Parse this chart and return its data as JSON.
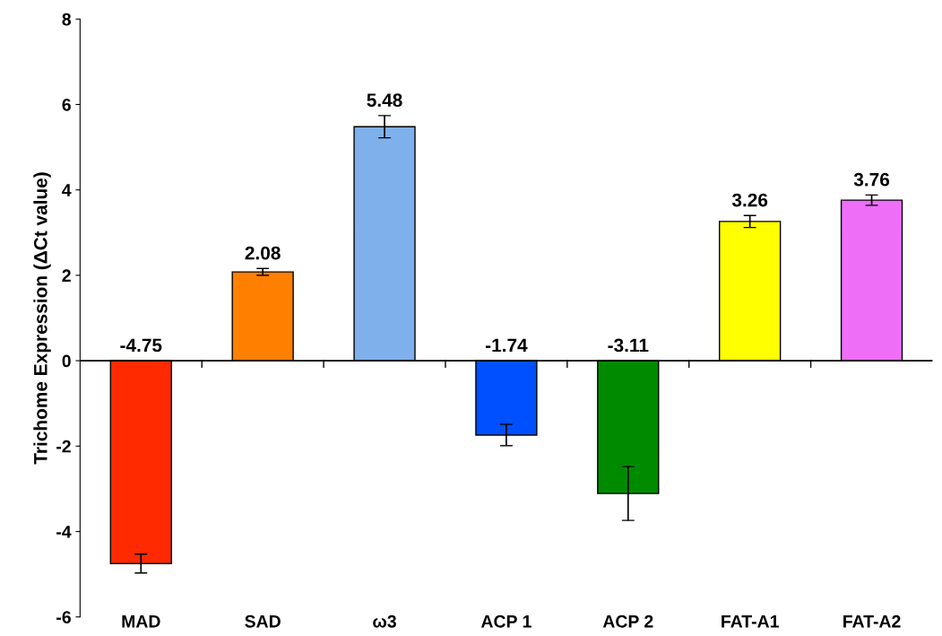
{
  "chart_data": {
    "type": "bar",
    "ylabel": "Trichome Expression (ΔCt value)",
    "categories": [
      "MAD",
      "SAD",
      "ω3",
      "ACP 1",
      "ACP 2",
      "FAT-A1",
      "FAT-A2"
    ],
    "values": [
      -4.75,
      2.08,
      5.48,
      -1.74,
      -3.11,
      3.26,
      3.76
    ],
    "errors": [
      0.22,
      0.08,
      0.26,
      0.25,
      0.63,
      0.14,
      0.12
    ],
    "colors": [
      "#ff2a00",
      "#ff7f00",
      "#7fb0ec",
      "#0050ff",
      "#008a00",
      "#ffff00",
      "#ee6ef8"
    ],
    "value_labels": [
      "-4.75",
      "2.08",
      "5.48",
      "-1.74",
      "-3.11",
      "3.26",
      "3.76"
    ],
    "ylim": [
      -6,
      8
    ],
    "yticks": [
      -6,
      -4,
      -2,
      0,
      2,
      4,
      6,
      8
    ]
  }
}
